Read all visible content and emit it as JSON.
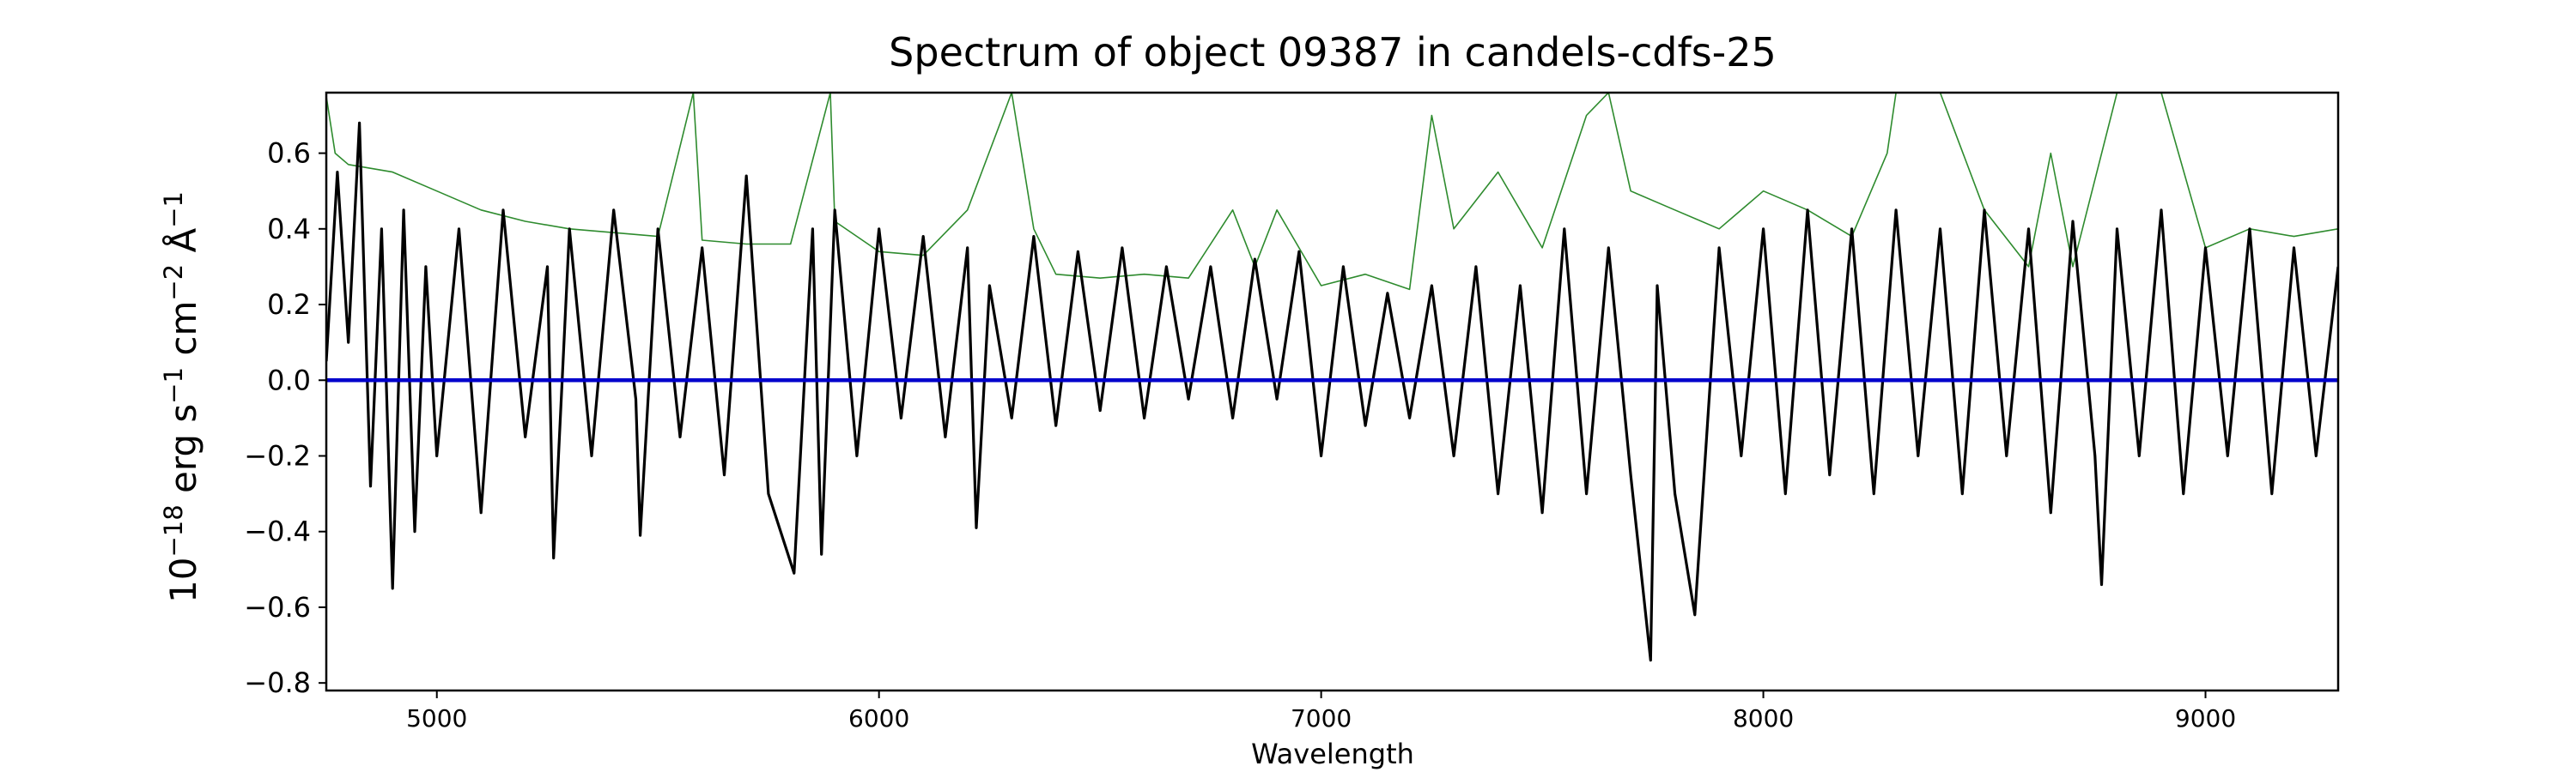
{
  "chart_data": {
    "type": "line",
    "title": "Spectrum of object 09387 in candels-cdfs-25",
    "xlabel": "Wavelength",
    "ylabel": {
      "base": "10",
      "exp": "−18",
      "unit_erg": " erg s",
      "exp_s": "−1",
      "unit_cm": " cm",
      "exp_cm": "−2",
      "unit_A": " Å",
      "exp_A": "−1"
    },
    "xlim": [
      4750,
      9300
    ],
    "ylim": [
      -0.82,
      0.76
    ],
    "xticks": [
      5000,
      6000,
      7000,
      8000,
      9000
    ],
    "xtick_labels": [
      "5000",
      "6000",
      "7000",
      "8000",
      "9000"
    ],
    "yticks": [
      0.6,
      0.4,
      0.2,
      0.0,
      -0.2,
      -0.4,
      -0.6,
      -0.8
    ],
    "ytick_labels": [
      "0.6",
      "0.4",
      "0.2",
      "0.0",
      "−0.2",
      "−0.4",
      "−0.6",
      "−0.8"
    ],
    "grid": false,
    "series": [
      {
        "role": "flux",
        "color": "#000000",
        "x": [
          4750,
          4775,
          4800,
          4825,
          4850,
          4875,
          4900,
          4925,
          4950,
          4975,
          5000,
          5050,
          5100,
          5150,
          5200,
          5250,
          5264,
          5300,
          5350,
          5400,
          5450,
          5460,
          5500,
          5550,
          5600,
          5650,
          5700,
          5750,
          5808,
          5850,
          5870,
          5900,
          5950,
          6000,
          6050,
          6100,
          6150,
          6200,
          6220,
          6250,
          6300,
          6350,
          6400,
          6450,
          6500,
          6550,
          6600,
          6650,
          6700,
          6750,
          6800,
          6850,
          6900,
          6950,
          7000,
          7050,
          7100,
          7150,
          7200,
          7250,
          7300,
          7350,
          7400,
          7450,
          7500,
          7550,
          7600,
          7650,
          7700,
          7745,
          7760,
          7800,
          7845,
          7900,
          7950,
          8000,
          8050,
          8100,
          8150,
          8200,
          8250,
          8300,
          8350,
          8400,
          8450,
          8500,
          8550,
          8600,
          8650,
          8700,
          8750,
          8765,
          8800,
          8850,
          8900,
          8950,
          9000,
          9050,
          9100,
          9150,
          9200,
          9250,
          9300
        ],
        "y": [
          0.05,
          0.55,
          0.1,
          0.68,
          -0.28,
          0.4,
          -0.55,
          0.45,
          -0.4,
          0.3,
          -0.2,
          0.4,
          -0.35,
          0.45,
          -0.15,
          0.3,
          -0.47,
          0.4,
          -0.2,
          0.45,
          -0.05,
          -0.41,
          0.4,
          -0.15,
          0.35,
          -0.25,
          0.54,
          -0.3,
          -0.51,
          0.4,
          -0.46,
          0.45,
          -0.2,
          0.4,
          -0.1,
          0.38,
          -0.15,
          0.35,
          -0.39,
          0.25,
          -0.1,
          0.38,
          -0.12,
          0.34,
          -0.08,
          0.35,
          -0.1,
          0.3,
          -0.05,
          0.3,
          -0.1,
          0.32,
          -0.05,
          0.34,
          -0.2,
          0.3,
          -0.12,
          0.23,
          -0.1,
          0.25,
          -0.2,
          0.3,
          -0.3,
          0.25,
          -0.35,
          0.4,
          -0.3,
          0.35,
          -0.25,
          -0.74,
          0.25,
          -0.3,
          -0.62,
          0.35,
          -0.2,
          0.4,
          -0.3,
          0.45,
          -0.25,
          0.4,
          -0.3,
          0.45,
          -0.2,
          0.4,
          -0.3,
          0.45,
          -0.2,
          0.4,
          -0.35,
          0.42,
          -0.2,
          -0.54,
          0.4,
          -0.2,
          0.45,
          -0.3,
          0.35,
          -0.2,
          0.4,
          -0.3,
          0.35,
          -0.2,
          0.3
        ]
      },
      {
        "role": "error",
        "color": "#2e8b2e",
        "x": [
          4750,
          4770,
          4800,
          4900,
          5000,
          5100,
          5200,
          5300,
          5400,
          5500,
          5580,
          5600,
          5700,
          5800,
          5890,
          5900,
          6000,
          6100,
          6200,
          6300,
          6350,
          6400,
          6500,
          6600,
          6700,
          6800,
          6850,
          6900,
          7000,
          7100,
          7200,
          7250,
          7300,
          7400,
          7500,
          7600,
          7650,
          7700,
          7800,
          7900,
          8000,
          8100,
          8200,
          8280,
          8300,
          8400,
          8500,
          8600,
          8650,
          8700,
          8800,
          8900,
          9000,
          9100,
          9200,
          9300
        ],
        "y": [
          0.75,
          0.6,
          0.57,
          0.55,
          0.5,
          0.45,
          0.42,
          0.4,
          0.39,
          0.38,
          0.76,
          0.37,
          0.36,
          0.36,
          0.76,
          0.42,
          0.34,
          0.33,
          0.45,
          0.76,
          0.4,
          0.28,
          0.27,
          0.28,
          0.27,
          0.45,
          0.3,
          0.45,
          0.25,
          0.28,
          0.24,
          0.7,
          0.4,
          0.55,
          0.35,
          0.7,
          0.76,
          0.5,
          0.45,
          0.4,
          0.5,
          0.45,
          0.38,
          0.6,
          0.76,
          0.76,
          0.45,
          0.3,
          0.6,
          0.3,
          0.76,
          0.76,
          0.35,
          0.4,
          0.38,
          0.4
        ]
      },
      {
        "role": "zero",
        "color": "#0000cc",
        "x": [
          4750,
          9300
        ],
        "y": [
          0.0,
          0.0
        ]
      }
    ]
  }
}
